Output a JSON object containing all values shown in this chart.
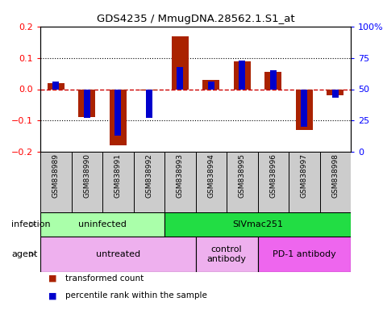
{
  "title": "GDS4235 / MmugDNA.28562.1.S1_at",
  "samples": [
    "GSM838989",
    "GSM838990",
    "GSM838991",
    "GSM838992",
    "GSM838993",
    "GSM838994",
    "GSM838995",
    "GSM838996",
    "GSM838997",
    "GSM838998"
  ],
  "transformed_count": [
    0.02,
    -0.09,
    -0.18,
    -0.005,
    0.17,
    0.03,
    0.09,
    0.055,
    -0.13,
    -0.02
  ],
  "percentile_rank": [
    0.56,
    0.27,
    0.13,
    0.27,
    0.68,
    0.56,
    0.73,
    0.65,
    0.2,
    0.43
  ],
  "ylim_left": [
    -0.2,
    0.2
  ],
  "ylim_right": [
    0,
    100
  ],
  "yticks_left": [
    -0.2,
    -0.1,
    0.0,
    0.1,
    0.2
  ],
  "yticks_right": [
    0,
    25,
    50,
    75,
    100
  ],
  "ytick_labels_right": [
    "0",
    "25",
    "50",
    "75",
    "100%"
  ],
  "infection_groups": [
    {
      "label": "uninfected",
      "start": 0,
      "end": 4,
      "color": "#AAFFAA"
    },
    {
      "label": "SIVmac251",
      "start": 4,
      "end": 10,
      "color": "#22DD44"
    }
  ],
  "agent_groups": [
    {
      "label": "untreated",
      "start": 0,
      "end": 5,
      "color": "#EEB0EE"
    },
    {
      "label": "control\nantibody",
      "start": 5,
      "end": 7,
      "color": "#EEB0EE"
    },
    {
      "label": "PD-1 antibody",
      "start": 7,
      "end": 10,
      "color": "#EE66EE"
    }
  ],
  "bar_color": "#AA2200",
  "dot_color": "#0000CC",
  "zero_line_color": "#CC0000",
  "grid_color": "#000000",
  "sample_bg_color": "#CCCCCC",
  "legend_items": [
    "transformed count",
    "percentile rank within the sample"
  ],
  "infection_label": "infection",
  "agent_label": "agent"
}
